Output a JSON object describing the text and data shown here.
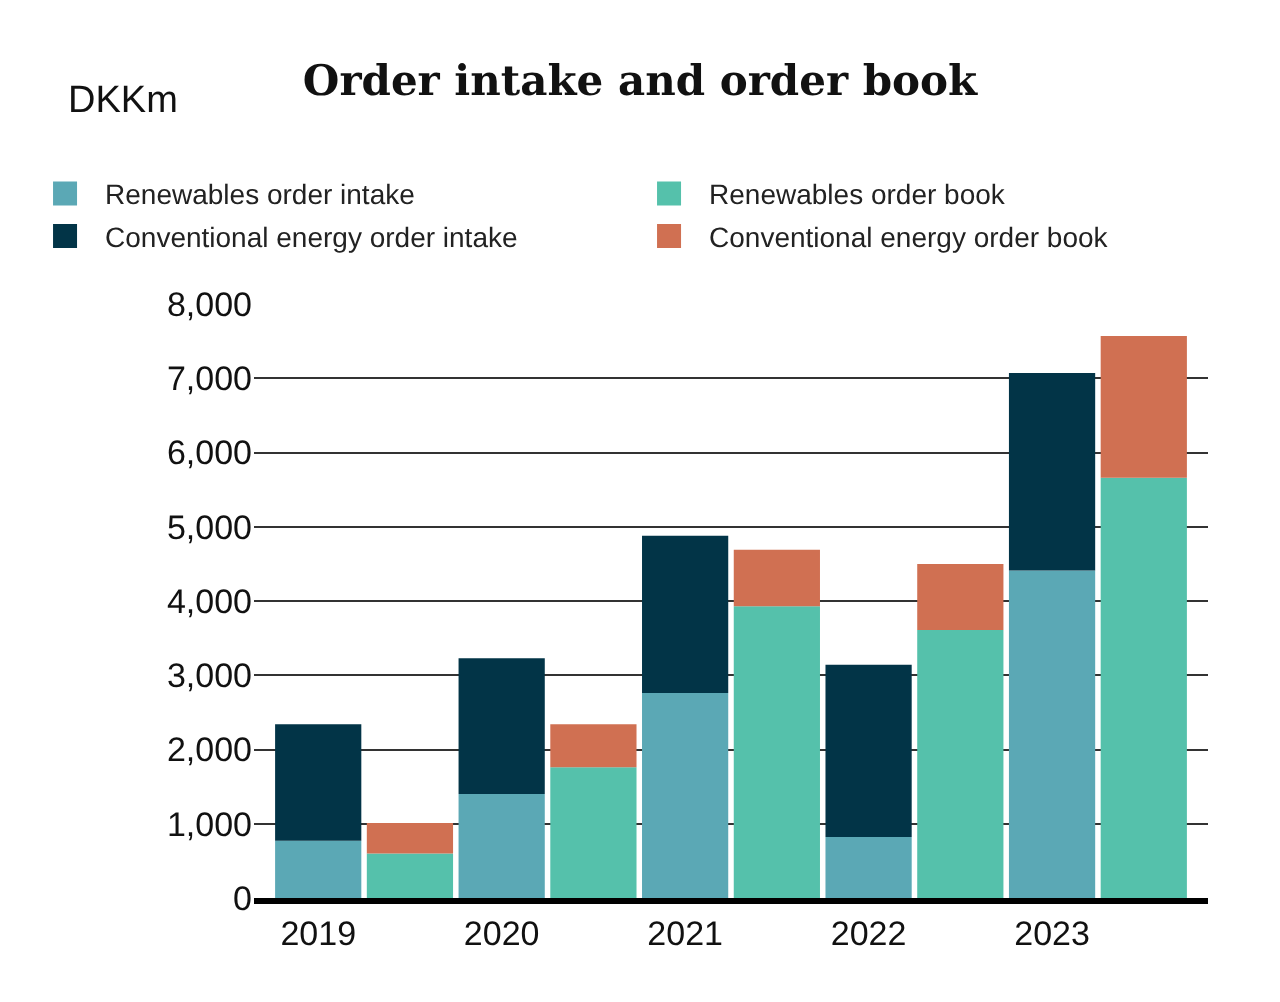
{
  "chart_data": {
    "type": "bar",
    "title": "Order intake and order book",
    "ylabel": "DKKm",
    "categories": [
      "2019",
      null,
      "2020",
      null,
      "2021",
      null,
      "2022",
      null,
      "2023",
      null
    ],
    "stacked": true,
    "series": [
      {
        "name": "Renewables order intake",
        "color": "#5ba8b5",
        "values": [
          770,
          null,
          1400,
          null,
          2760,
          null,
          820,
          null,
          4410,
          null
        ]
      },
      {
        "name": "Renewables order book",
        "color": "#55c1ab",
        "values": [
          null,
          600,
          null,
          1760,
          null,
          3930,
          null,
          3610,
          null,
          5660
        ]
      },
      {
        "name": "Conventional energy order intake",
        "color": "#023447",
        "values": [
          1570,
          null,
          1830,
          null,
          2120,
          null,
          2320,
          null,
          2660,
          null
        ]
      },
      {
        "name": "Conventional energy order book",
        "color": "#d07052",
        "values": [
          null,
          410,
          null,
          580,
          null,
          760,
          null,
          890,
          null,
          1910
        ]
      }
    ],
    "ylim": [
      0,
      8000
    ],
    "yticks": [
      {
        "value": 0,
        "label": "0"
      },
      {
        "value": 1000,
        "label": "1,000"
      },
      {
        "value": 2000,
        "label": "2,000"
      },
      {
        "value": 3000,
        "label": "3,000"
      },
      {
        "value": 4000,
        "label": "4,000"
      },
      {
        "value": 5000,
        "label": "5,000"
      },
      {
        "value": 6000,
        "label": "6,000"
      },
      {
        "value": 7000,
        "label": "7,000"
      },
      {
        "value": 8000,
        "label": "8,000"
      }
    ],
    "grid": "y",
    "legend": "top"
  }
}
